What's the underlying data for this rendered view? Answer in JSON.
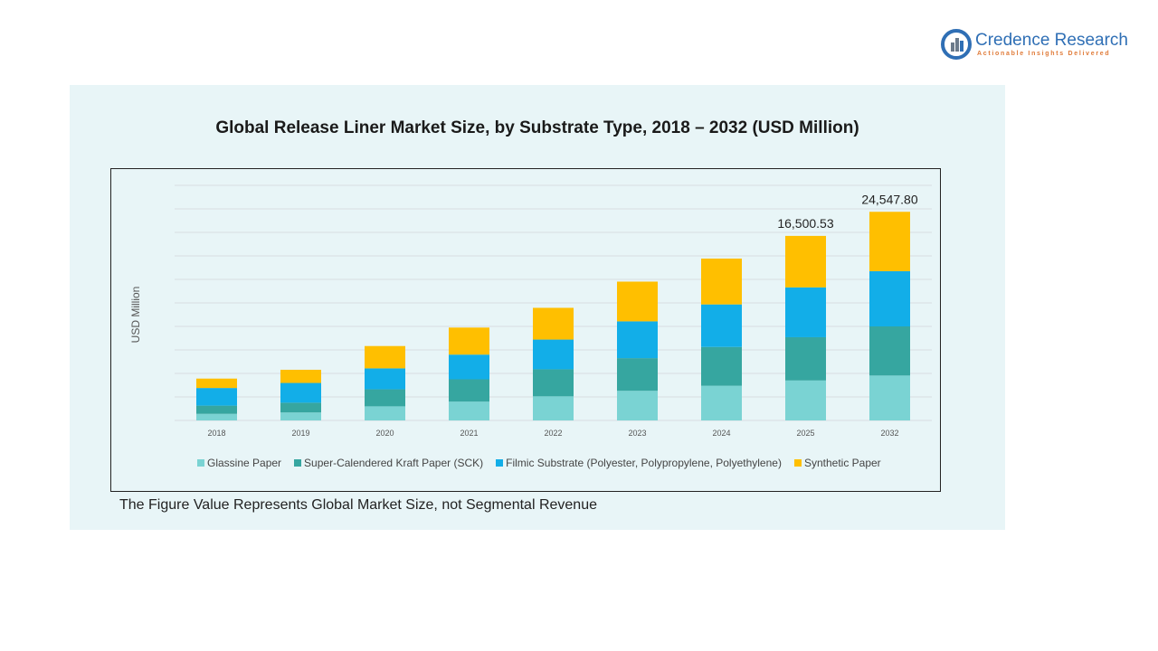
{
  "brand": {
    "name": "Credence Research",
    "tagline": "Actionable Insights Delivered"
  },
  "chart_data": {
    "type": "bar",
    "stacked": true,
    "title": "Global Release Liner Market Size, by Substrate Type, 2018 – 2032 (USD Million)",
    "ylabel": "USD Million",
    "xlabel": "",
    "categories": [
      "2018",
      "2019",
      "2020",
      "2021",
      "2022",
      "2023",
      "2024",
      "2025",
      "2032"
    ],
    "series": [
      {
        "name": "Glassine Paper",
        "color": "#7ad3d3",
        "values": [
          560,
          680,
          1200,
          1600,
          2050,
          2520,
          2950,
          3400,
          3820
        ]
      },
      {
        "name": "Super-Calendered Kraft Paper (SCK)",
        "color": "#36a6a0",
        "values": [
          700,
          830,
          1450,
          1900,
          2300,
          2780,
          3300,
          3680,
          4180
        ]
      },
      {
        "name": "Filmic Substrate (Polyester, Polypropylene, Polyethylene)",
        "color": "#12aee8",
        "values": [
          1500,
          1680,
          1780,
          2100,
          2530,
          3130,
          3620,
          4240,
          4700
        ]
      },
      {
        "name": "Synthetic Paper",
        "color": "#ffbf00",
        "values": [
          800,
          1120,
          1900,
          2300,
          2700,
          3380,
          3900,
          4380,
          5050
        ]
      }
    ],
    "totals_labels": [
      {
        "category": "2025",
        "label": "16,500.53"
      },
      {
        "category": "2032",
        "label": "24,547.80"
      }
    ],
    "ylim": [
      0,
      21000
    ],
    "grid": true,
    "legend_position": "bottom",
    "footnote": "The Figure Value Represents Global Market Size, not Segmental Revenue"
  }
}
